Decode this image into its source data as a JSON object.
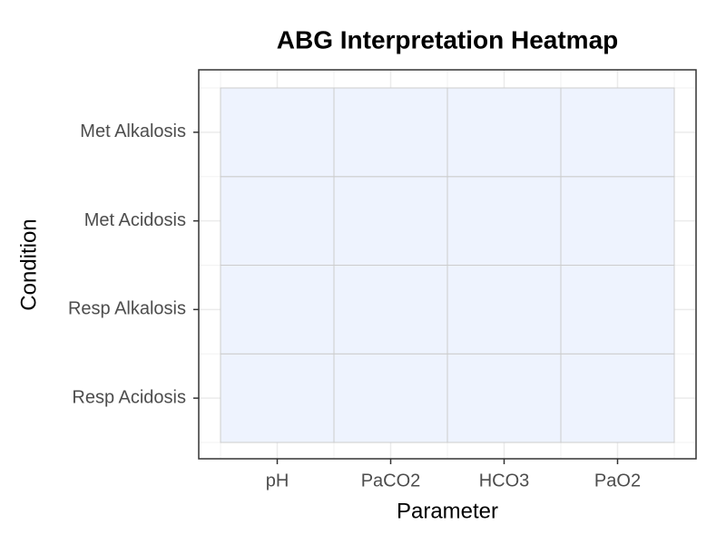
{
  "chart_data": {
    "type": "heatmap",
    "title": "ABG Interpretation Heatmap",
    "x_label": "Parameter",
    "y_label": "Condition",
    "x_categories": [
      "pH",
      "PaCO2",
      "HCO3",
      "PaO2"
    ],
    "y_categories": [
      "Resp Acidosis",
      "Resp Alkalosis",
      "Met Acidosis",
      "Met Alkalosis"
    ],
    "values": [
      [
        0,
        0,
        0,
        0
      ],
      [
        0,
        0,
        0,
        0
      ],
      [
        0,
        0,
        0,
        0
      ],
      [
        0,
        0,
        0,
        0
      ]
    ],
    "color": "#eef3fe",
    "grid": true
  }
}
